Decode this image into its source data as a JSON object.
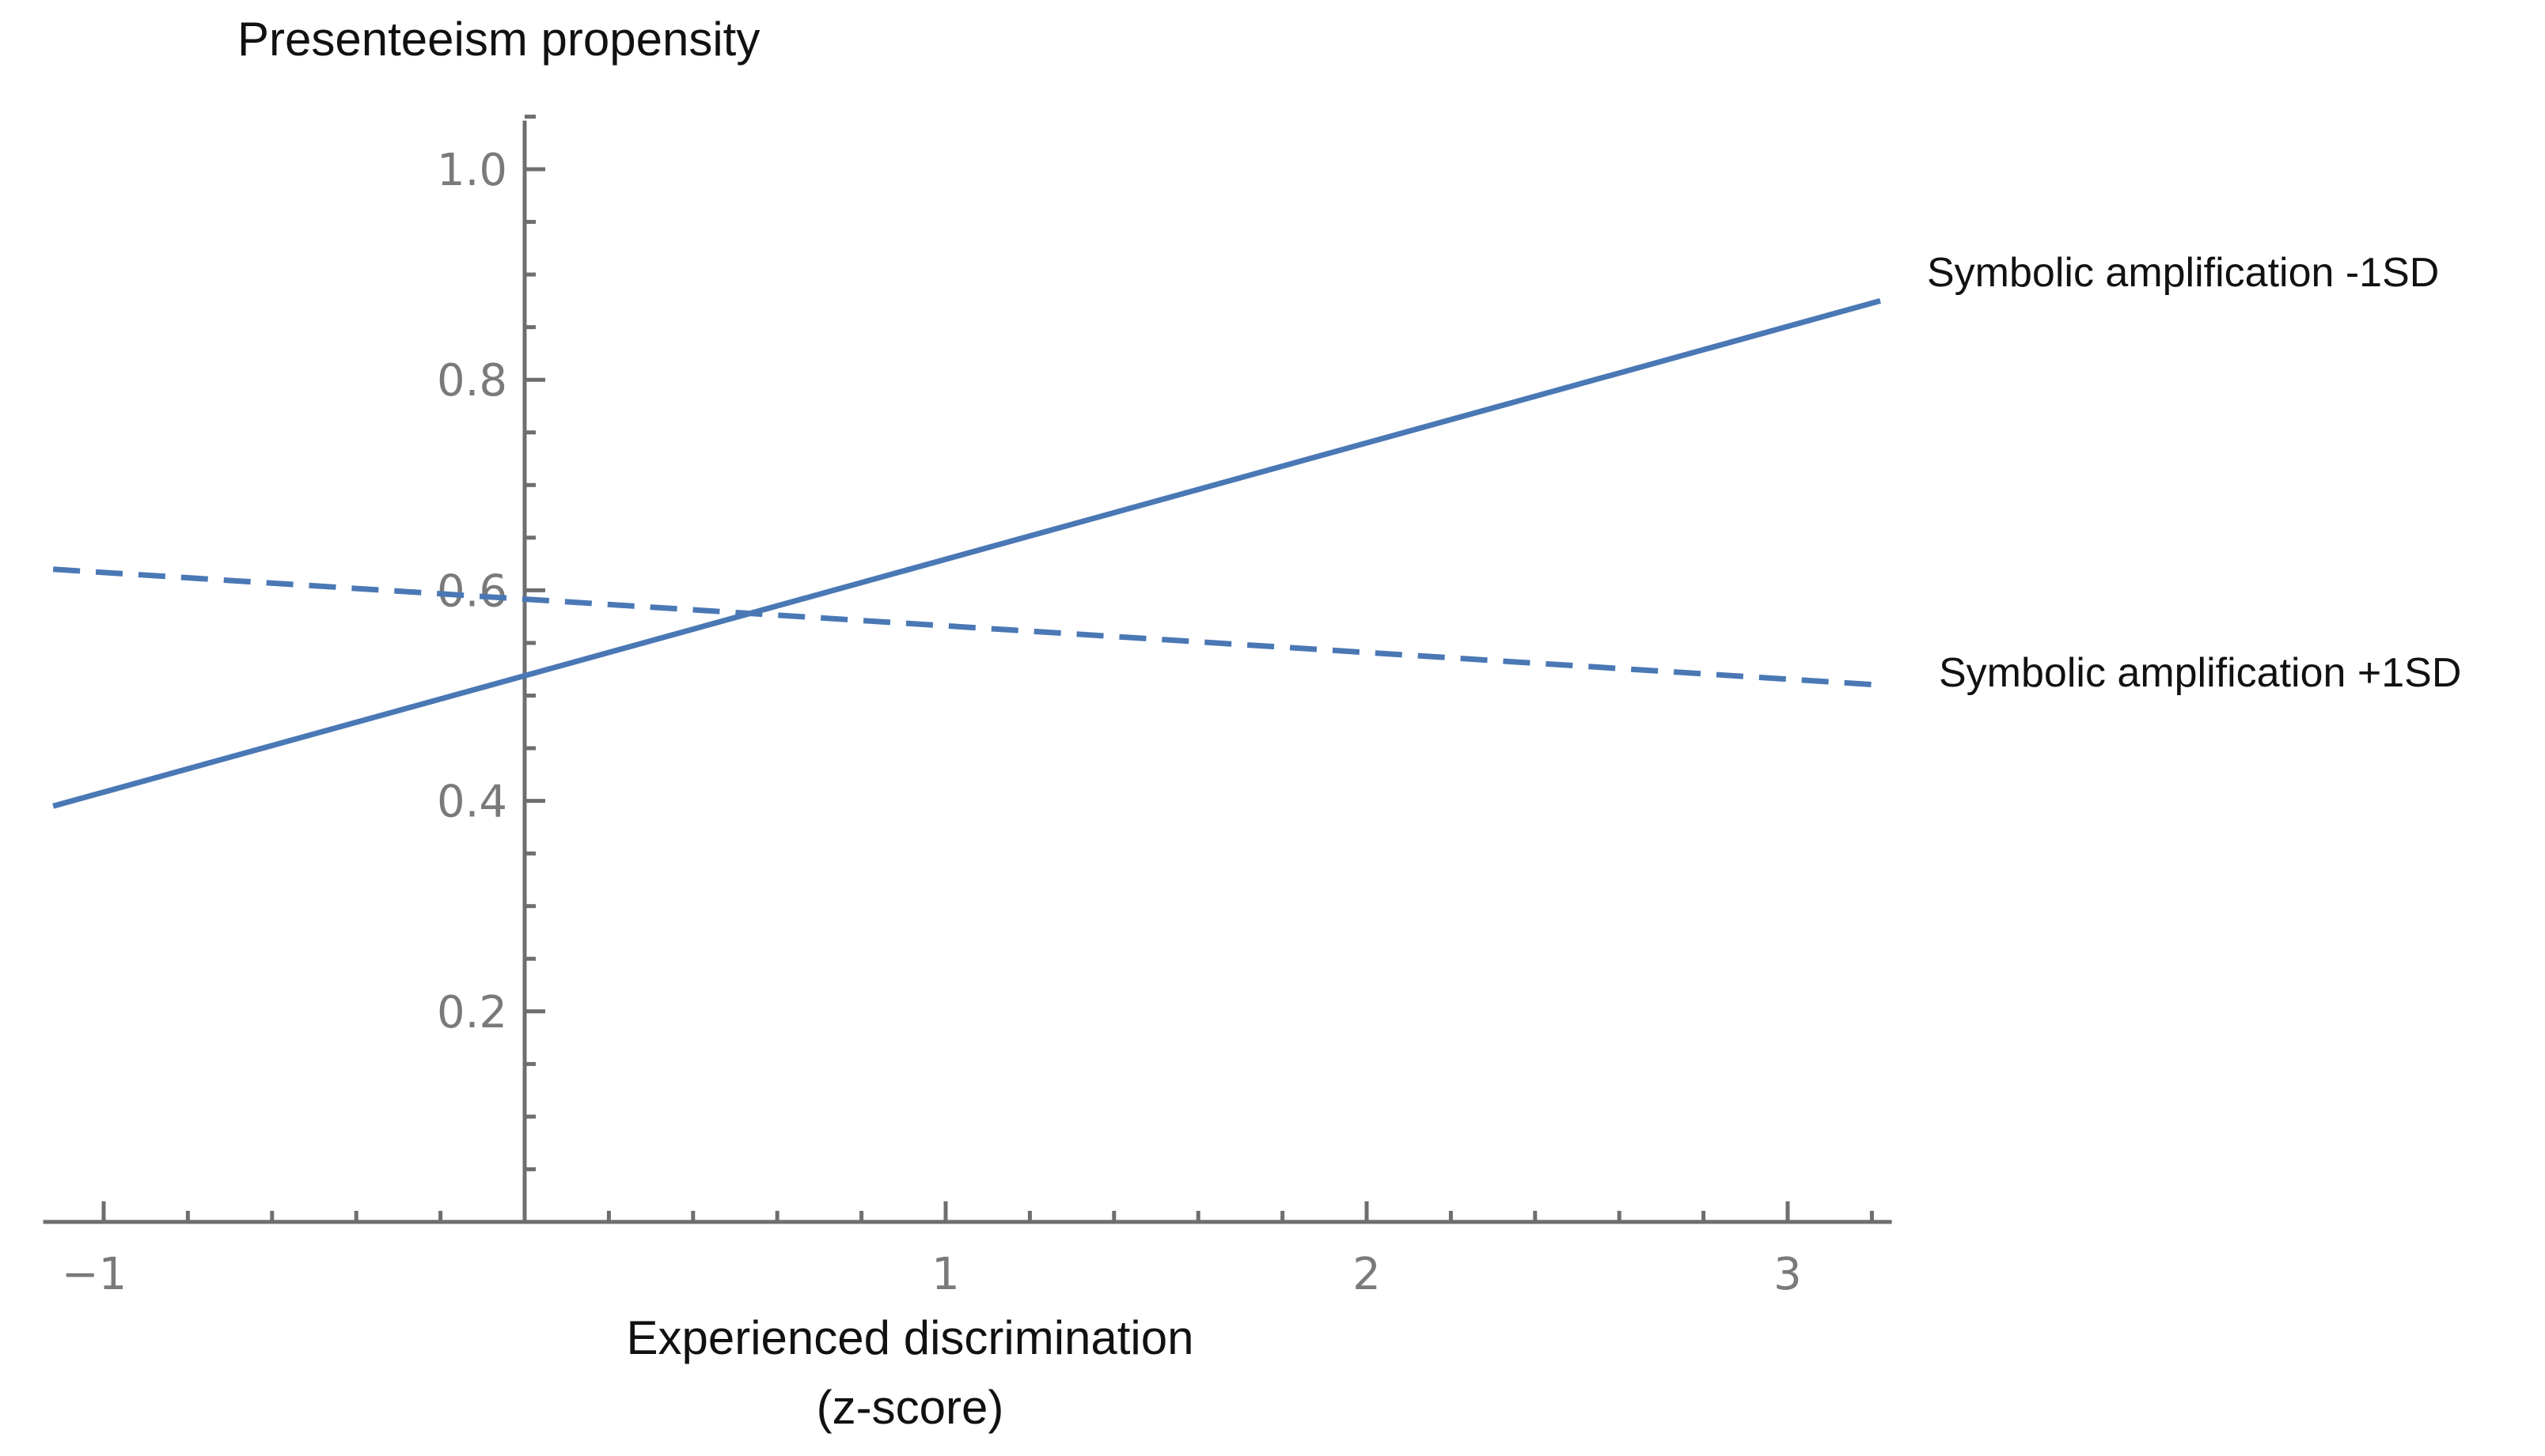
{
  "chart_data": {
    "type": "line",
    "title": "",
    "ylabel": "Presenteeism propensity",
    "xlabel_line1": "Experienced discrimination",
    "xlabel_line2": "(z-score)",
    "xlim": [
      -1.2,
      3.3
    ],
    "ylim": [
      0,
      1.05
    ],
    "x_ticks": [
      -1,
      1,
      2,
      3
    ],
    "x_tick_labels": [
      "−1",
      "1",
      "2",
      "3"
    ],
    "x_minor_step": 0.2,
    "y_ticks": [
      0.2,
      0.4,
      0.6,
      0.8,
      1.0
    ],
    "y_tick_labels": [
      "0.2",
      "0.4",
      "0.6",
      "0.8",
      "1.0"
    ],
    "y_minor_step": 0.05,
    "grid": false,
    "color": "#4a78b5",
    "series": [
      {
        "name": "Symbolic amplification -1SD",
        "style": "solid",
        "x": [
          -1.12,
          3.22
        ],
        "y": [
          0.395,
          0.875
        ]
      },
      {
        "name": "Symbolic amplification +1SD",
        "style": "dashed",
        "x": [
          -1.12,
          3.22
        ],
        "y": [
          0.62,
          0.51
        ]
      }
    ]
  }
}
